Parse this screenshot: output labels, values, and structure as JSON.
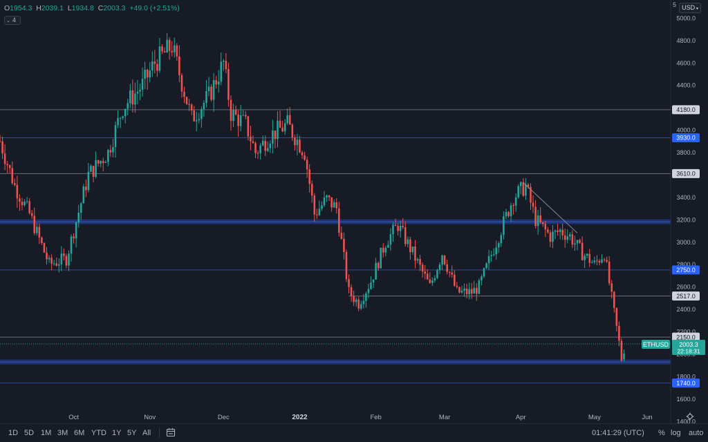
{
  "legend": {
    "open_label": "O",
    "open": "1954.3",
    "high_label": "H",
    "high": "2039.1",
    "low_label": "L",
    "low": "1934.8",
    "close_label": "C",
    "close": "2003.3",
    "change": "+49.0 (+2.51%)"
  },
  "indicator_count": "4",
  "top_right_tag": "5",
  "currency": "USD",
  "colors": {
    "up": "#26a69a",
    "down": "#ef5350",
    "background": "#171b26",
    "level_gray": "#9598a1",
    "level_blue": "#2962ff"
  },
  "bottom_bar": {
    "timeframes": [
      "1D",
      "5D",
      "1M",
      "3M",
      "6M",
      "YTD",
      "1Y",
      "5Y",
      "All"
    ],
    "calendar_icon": "calendar-range-icon",
    "clock": "01:41:29 (UTC)",
    "percent": "%",
    "log": "log",
    "auto": "auto"
  },
  "chart_data": {
    "type": "candlestick",
    "symbol": "ETHUSD",
    "last_price": "2003.3",
    "countdown": "22:18:31",
    "y_ticks": [
      1400,
      1600,
      1800,
      2000,
      2200,
      2400,
      2600,
      2800,
      3000,
      3200,
      3400,
      3600,
      3800,
      4000,
      4200,
      4400,
      4600,
      4800,
      5000
    ],
    "y_tick_labels": [
      "1400.0",
      "1600.0",
      "1800.0",
      "2000.0",
      "2200.0",
      "2400.0",
      "2600.0",
      "2800.0",
      "3000.0",
      "3200.0",
      "3400.0",
      "3600.0",
      "3800.0",
      "4000.0",
      "4200.0",
      "4400.0",
      "4600.0",
      "4800.0",
      "5000.0"
    ],
    "x_labels": [
      "Oct",
      "Nov",
      "Dec",
      "2022",
      "Feb",
      "Mar",
      "Apr",
      "May",
      "Jun"
    ],
    "x_range": [
      "2021-09-01",
      "2022-06-01"
    ],
    "y_range": [
      1380,
      5160
    ],
    "levels": [
      {
        "price": 4180,
        "label": "4180.0",
        "style": "gray"
      },
      {
        "price": 3930,
        "label": "3930.0",
        "style": "blue"
      },
      {
        "price": 3610,
        "label": "3610.0",
        "style": "gray"
      },
      {
        "price": 3180,
        "label": "",
        "style": "blue-zone"
      },
      {
        "price": 2750,
        "label": "2750.0",
        "style": "blue"
      },
      {
        "price": 2517,
        "label": "2517.0",
        "style": "gray",
        "from": "2022-01-21"
      },
      {
        "price": 2150,
        "label": "2150.0",
        "style": "gray"
      },
      {
        "price": 1928,
        "label": "",
        "style": "blue-zone"
      },
      {
        "price": 1740,
        "label": "1740.0",
        "style": "blue"
      }
    ],
    "trendline": [
      {
        "date": "2022-04-02",
        "price": 3530
      },
      {
        "date": "2022-04-24",
        "price": 3080
      }
    ],
    "key_points": [
      {
        "date": "2021-09-01",
        "price": 3900
      },
      {
        "date": "2021-09-07",
        "price": 3500
      },
      {
        "date": "2021-09-13",
        "price": 3250
      },
      {
        "date": "2021-09-21",
        "price": 2800
      },
      {
        "date": "2021-09-28",
        "price": 2850
      },
      {
        "date": "2021-10-07",
        "price": 3600
      },
      {
        "date": "2021-10-15",
        "price": 3800
      },
      {
        "date": "2021-10-21",
        "price": 4200
      },
      {
        "date": "2021-10-29",
        "price": 4400
      },
      {
        "date": "2021-11-03",
        "price": 4600
      },
      {
        "date": "2021-11-10",
        "price": 4750
      },
      {
        "date": "2021-11-18",
        "price": 4100
      },
      {
        "date": "2021-11-25",
        "price": 4300
      },
      {
        "date": "2021-12-01",
        "price": 4600
      },
      {
        "date": "2021-12-04",
        "price": 4150
      },
      {
        "date": "2021-12-10",
        "price": 4050
      },
      {
        "date": "2021-12-14",
        "price": 3800
      },
      {
        "date": "2021-12-20",
        "price": 3950
      },
      {
        "date": "2021-12-27",
        "price": 4050
      },
      {
        "date": "2022-01-03",
        "price": 3800
      },
      {
        "date": "2022-01-07",
        "price": 3250
      },
      {
        "date": "2022-01-12",
        "price": 3380
      },
      {
        "date": "2022-01-16",
        "price": 3300
      },
      {
        "date": "2022-01-21",
        "price": 2550
      },
      {
        "date": "2022-01-25",
        "price": 2450
      },
      {
        "date": "2022-01-30",
        "price": 2650
      },
      {
        "date": "2022-02-05",
        "price": 3000
      },
      {
        "date": "2022-02-10",
        "price": 3150
      },
      {
        "date": "2022-02-16",
        "price": 2900
      },
      {
        "date": "2022-02-23",
        "price": 2600
      },
      {
        "date": "2022-02-28",
        "price": 2900
      },
      {
        "date": "2022-03-06",
        "price": 2550
      },
      {
        "date": "2022-03-12",
        "price": 2550
      },
      {
        "date": "2022-03-15",
        "price": 2600
      },
      {
        "date": "2022-03-22",
        "price": 3000
      },
      {
        "date": "2022-03-29",
        "price": 3400
      },
      {
        "date": "2022-04-03",
        "price": 3500
      },
      {
        "date": "2022-04-07",
        "price": 3200
      },
      {
        "date": "2022-04-13",
        "price": 3050
      },
      {
        "date": "2022-04-17",
        "price": 3100
      },
      {
        "date": "2022-04-21",
        "price": 3050
      },
      {
        "date": "2022-04-26",
        "price": 2900
      },
      {
        "date": "2022-05-01",
        "price": 2800
      },
      {
        "date": "2022-05-05",
        "price": 2900
      },
      {
        "date": "2022-05-08",
        "price": 2500
      },
      {
        "date": "2022-05-11",
        "price": 2100
      },
      {
        "date": "2022-05-12",
        "price": 1954
      },
      {
        "date": "2022-05-13",
        "price": 2003
      }
    ]
  }
}
